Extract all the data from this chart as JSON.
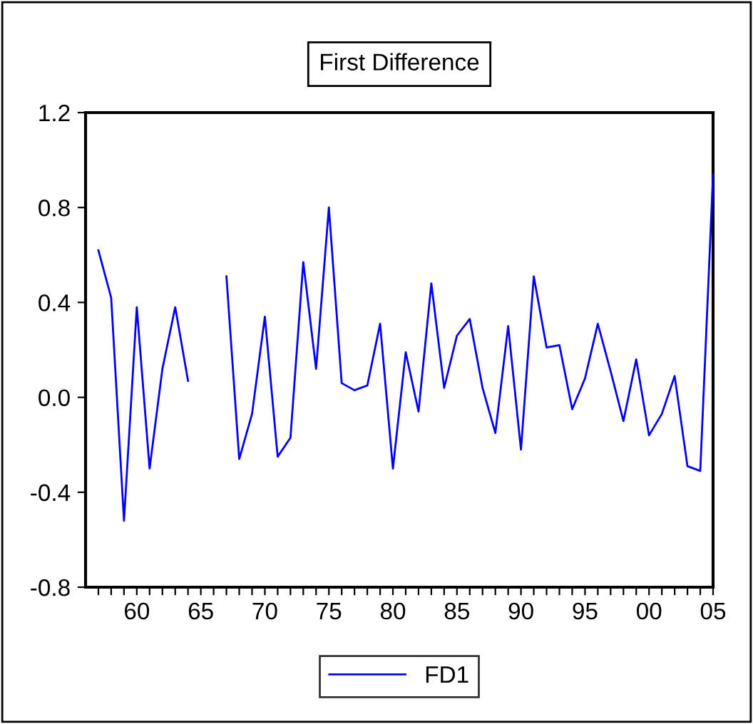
{
  "chart_data": {
    "type": "line",
    "title": "First Difference",
    "x": [
      1957,
      1958,
      1959,
      1960,
      1961,
      1962,
      1963,
      1964,
      1965,
      1966,
      1967,
      1968,
      1969,
      1970,
      1971,
      1972,
      1973,
      1974,
      1975,
      1976,
      1977,
      1978,
      1979,
      1980,
      1981,
      1982,
      1983,
      1984,
      1985,
      1986,
      1987,
      1988,
      1989,
      1990,
      1991,
      1992,
      1993,
      1994,
      1995,
      1996,
      1997,
      1998,
      1999,
      2000,
      2001,
      2002,
      2003,
      2004,
      2005
    ],
    "series": [
      {
        "name": "FD1",
        "color": "#0000ff",
        "values": [
          0.62,
          0.42,
          -0.52,
          0.38,
          -0.3,
          0.12,
          0.38,
          0.07,
          null,
          null,
          0.51,
          -0.26,
          -0.07,
          0.34,
          -0.25,
          -0.17,
          0.57,
          0.12,
          0.8,
          0.06,
          0.03,
          0.05,
          0.31,
          -0.3,
          0.19,
          -0.06,
          0.48,
          0.04,
          0.26,
          0.33,
          0.04,
          -0.15,
          0.3,
          -0.22,
          0.51,
          0.21,
          0.22,
          -0.05,
          0.08,
          0.31,
          0.11,
          -0.1,
          0.16,
          -0.16,
          -0.07,
          0.09,
          -0.29,
          -0.31,
          0.94
        ]
      }
    ],
    "xlim": [
      1956,
      2005
    ],
    "xticks": [
      {
        "value": 1957,
        "label": null
      },
      {
        "value": 1958,
        "label": null
      },
      {
        "value": 1959,
        "label": null
      },
      {
        "value": 1960,
        "label": "60"
      },
      {
        "value": 1961,
        "label": null
      },
      {
        "value": 1962,
        "label": null
      },
      {
        "value": 1963,
        "label": null
      },
      {
        "value": 1964,
        "label": null
      },
      {
        "value": 1965,
        "label": "65"
      },
      {
        "value": 1966,
        "label": null
      },
      {
        "value": 1967,
        "label": null
      },
      {
        "value": 1968,
        "label": null
      },
      {
        "value": 1969,
        "label": null
      },
      {
        "value": 1970,
        "label": "70"
      },
      {
        "value": 1971,
        "label": null
      },
      {
        "value": 1972,
        "label": null
      },
      {
        "value": 1973,
        "label": null
      },
      {
        "value": 1974,
        "label": null
      },
      {
        "value": 1975,
        "label": "75"
      },
      {
        "value": 1976,
        "label": null
      },
      {
        "value": 1977,
        "label": null
      },
      {
        "value": 1978,
        "label": null
      },
      {
        "value": 1979,
        "label": null
      },
      {
        "value": 1980,
        "label": "80"
      },
      {
        "value": 1981,
        "label": null
      },
      {
        "value": 1982,
        "label": null
      },
      {
        "value": 1983,
        "label": null
      },
      {
        "value": 1984,
        "label": null
      },
      {
        "value": 1985,
        "label": "85"
      },
      {
        "value": 1986,
        "label": null
      },
      {
        "value": 1987,
        "label": null
      },
      {
        "value": 1988,
        "label": null
      },
      {
        "value": 1989,
        "label": null
      },
      {
        "value": 1990,
        "label": "90"
      },
      {
        "value": 1991,
        "label": null
      },
      {
        "value": 1992,
        "label": null
      },
      {
        "value": 1993,
        "label": null
      },
      {
        "value": 1994,
        "label": null
      },
      {
        "value": 1995,
        "label": "95"
      },
      {
        "value": 1996,
        "label": null
      },
      {
        "value": 1997,
        "label": null
      },
      {
        "value": 1998,
        "label": null
      },
      {
        "value": 1999,
        "label": null
      },
      {
        "value": 2000,
        "label": "00"
      },
      {
        "value": 2001,
        "label": null
      },
      {
        "value": 2002,
        "label": null
      },
      {
        "value": 2003,
        "label": null
      },
      {
        "value": 2004,
        "label": null
      },
      {
        "value": 2005,
        "label": "05"
      }
    ],
    "ylim": [
      -0.8,
      1.2
    ],
    "yticks": [
      {
        "value": -0.8,
        "label": "-0.8"
      },
      {
        "value": -0.4,
        "label": "-0.4"
      },
      {
        "value": 0.0,
        "label": "0.0"
      },
      {
        "value": 0.4,
        "label": "0.4"
      },
      {
        "value": 0.8,
        "label": "0.8"
      },
      {
        "value": 1.2,
        "label": "1.2"
      }
    ],
    "grid": false,
    "legend": "bottom",
    "marker": "none",
    "line_style": "solid"
  }
}
